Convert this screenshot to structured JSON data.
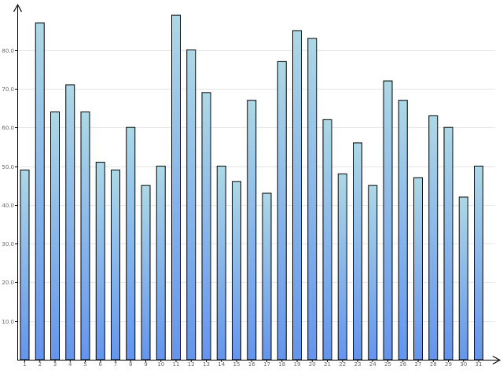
{
  "chart_data": {
    "type": "bar",
    "title": "",
    "xlabel": "",
    "ylabel": "",
    "ylim": [
      0,
      90
    ],
    "grid": true,
    "legend": "none",
    "categories": [
      "1",
      "2",
      "3",
      "4",
      "5",
      "6",
      "7",
      "8",
      "9",
      "10",
      "11",
      "12",
      "13",
      "14",
      "15",
      "16",
      "17",
      "18",
      "19",
      "20",
      "21",
      "22",
      "23",
      "24",
      "25",
      "26",
      "27",
      "28",
      "29",
      "30",
      "31"
    ],
    "values": [
      49,
      87,
      64,
      71,
      64,
      51,
      49,
      60,
      45,
      50,
      89,
      80,
      69,
      50,
      46,
      67,
      43,
      77,
      85,
      83,
      62,
      48,
      56,
      45,
      72,
      67,
      47,
      63,
      60,
      42,
      50
    ],
    "y_ticks": [
      10,
      20,
      30,
      40,
      50,
      60,
      70,
      80
    ],
    "y_tick_labels": [
      "10.0",
      "20.0",
      "30.0",
      "40.0",
      "50.0",
      "60.0",
      "70.0",
      "80.0"
    ],
    "colors": {
      "bar_top": "#ADD8E6",
      "bar_bottom": "#6495ED",
      "bar_stroke": "#000000",
      "grid": "#e6e6e6",
      "axis": "#000000",
      "tick_label": "#666666"
    }
  }
}
